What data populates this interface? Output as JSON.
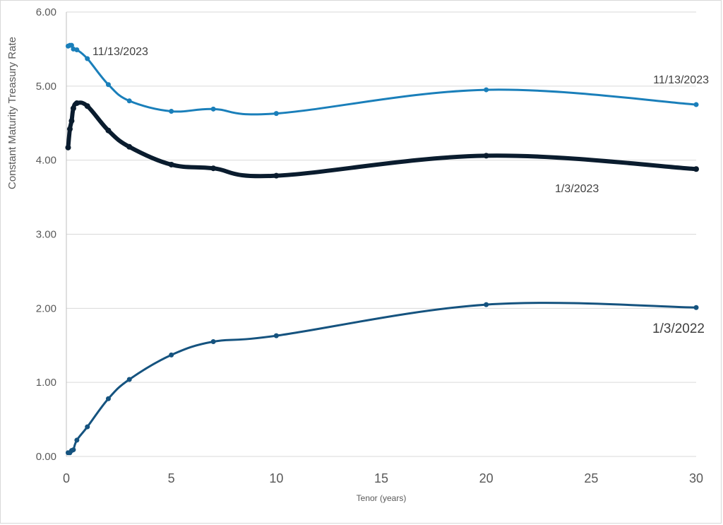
{
  "chart_data": {
    "type": "line",
    "title": "",
    "xlabel": "Tenor (years)",
    "ylabel": "Constant Maturity Treasury Rate",
    "xlim": [
      0,
      30
    ],
    "ylim": [
      0,
      6
    ],
    "x_ticks": [
      "0",
      "5",
      "10",
      "15",
      "20",
      "25",
      "30"
    ],
    "y_ticks": [
      "0.00",
      "1.00",
      "2.00",
      "3.00",
      "4.00",
      "5.00",
      "6.00"
    ],
    "grid": "horizontal",
    "series": [
      {
        "name": "11/13/2023",
        "color": "#1a7fba",
        "x": [
          0.083,
          0.167,
          0.25,
          0.333,
          0.5,
          1,
          2,
          3,
          5,
          7,
          10,
          20,
          30
        ],
        "values": [
          5.54,
          5.55,
          5.55,
          5.5,
          5.49,
          5.37,
          5.02,
          4.8,
          4.66,
          4.69,
          4.63,
          4.95,
          4.75
        ]
      },
      {
        "name": "1/3/2023",
        "color": "#0a1c2e",
        "x": [
          0.083,
          0.167,
          0.25,
          0.333,
          0.5,
          1,
          2,
          3,
          5,
          7,
          10,
          20,
          30
        ],
        "values": [
          4.17,
          4.42,
          4.53,
          4.7,
          4.77,
          4.73,
          4.4,
          4.18,
          3.94,
          3.89,
          3.79,
          4.06,
          3.88
        ]
      },
      {
        "name": "1/3/2022",
        "color": "#15537f",
        "x": [
          0.083,
          0.167,
          0.25,
          0.333,
          0.5,
          1,
          2,
          3,
          5,
          7,
          10,
          20,
          30
        ],
        "values": [
          0.05,
          0.05,
          0.08,
          0.09,
          0.22,
          0.4,
          0.78,
          1.04,
          1.37,
          1.55,
          1.63,
          2.05,
          2.01
        ]
      }
    ],
    "annotations": [
      "11/13/2023",
      "11/13/2023",
      "1/3/2023",
      "1/3/2022"
    ]
  }
}
